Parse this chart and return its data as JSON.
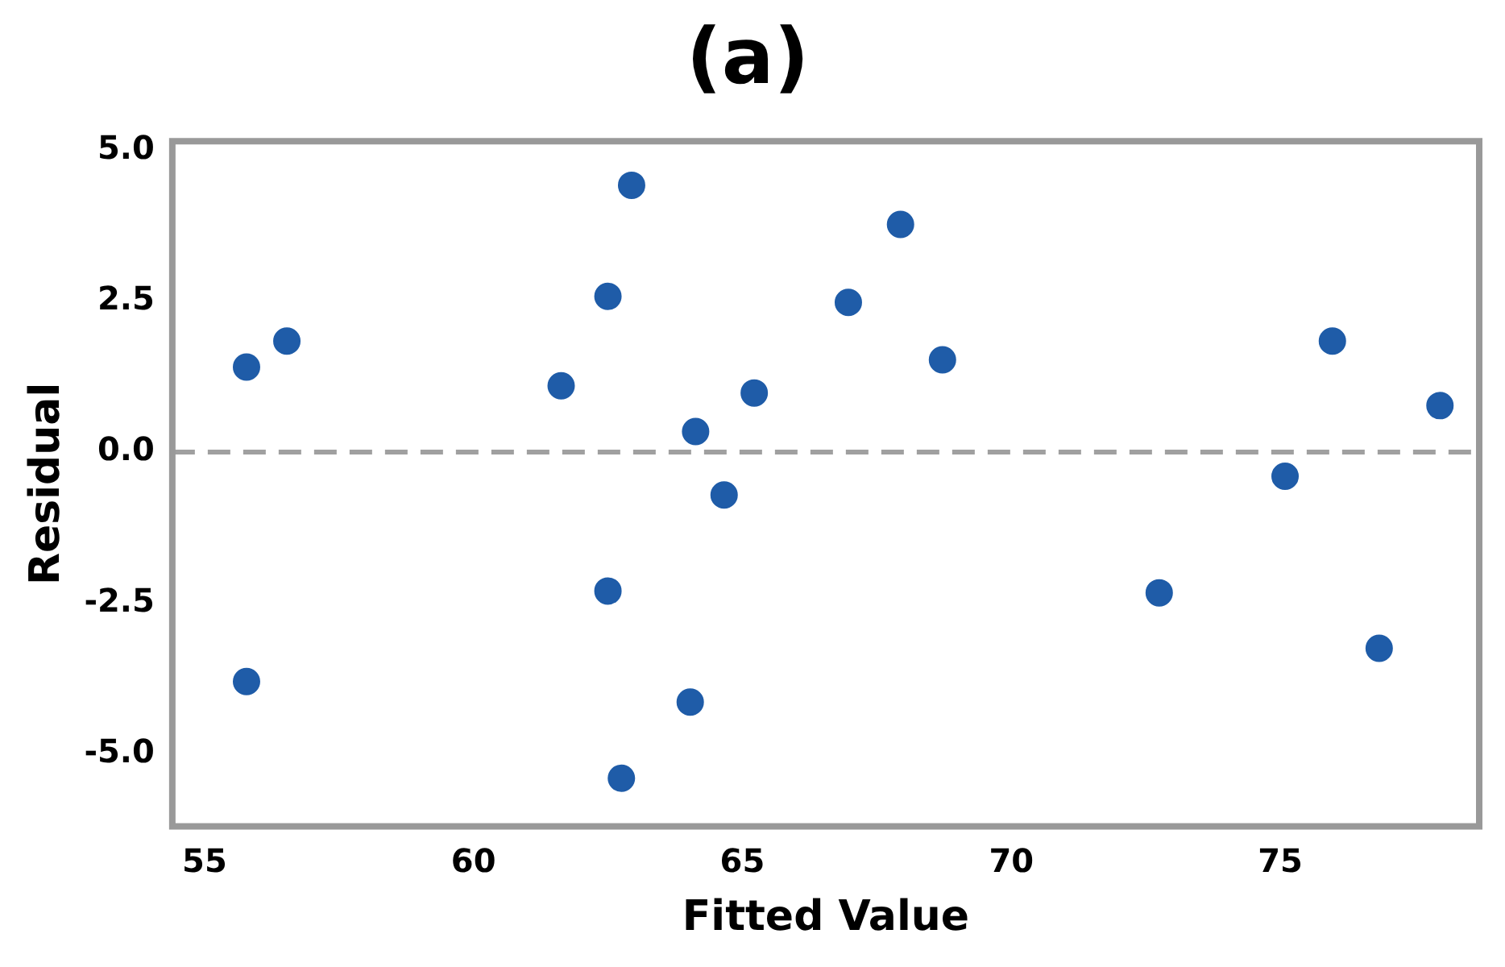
{
  "chart_data": {
    "type": "scatter",
    "title": "(a)",
    "xlabel": "Fitted Value",
    "ylabel": "Residual",
    "x": [
      55.78,
      56.53,
      55.78,
      61.63,
      62.5,
      62.5,
      62.94,
      62.75,
      64.13,
      64.03,
      64.66,
      65.22,
      66.97,
      67.94,
      68.72,
      72.75,
      75.09,
      75.97,
      76.84,
      77.97
    ],
    "series": [
      {
        "color": "#1f5ca8",
        "values": [
          1.41,
          1.84,
          -3.8,
          1.1,
          2.58,
          -2.3,
          4.42,
          -5.4,
          0.34,
          -4.14,
          -0.71,
          0.98,
          2.48,
          3.77,
          1.53,
          -2.33,
          -0.4,
          1.84,
          -3.25,
          0.77
        ]
      }
    ],
    "xlim": [
      54.4,
      78.7
    ],
    "xticks": [
      55,
      60,
      65,
      70,
      75
    ],
    "ylim": [
      -6.2,
      5.15
    ],
    "yticks": [
      {
        "value": -5,
        "label": "-5.0"
      },
      {
        "value": -2.5,
        "label": "-2.5"
      },
      {
        "value": 0,
        "label": "0.0"
      },
      {
        "value": 2.5,
        "label": "2.5"
      },
      {
        "value": 5,
        "label": "5.0"
      }
    ],
    "ref_lines": [
      {
        "axis": "y",
        "value": 0,
        "color": "#a0a0a0",
        "line_style": "dashed"
      }
    ],
    "grid": false,
    "legend": false,
    "marker": "circle"
  }
}
